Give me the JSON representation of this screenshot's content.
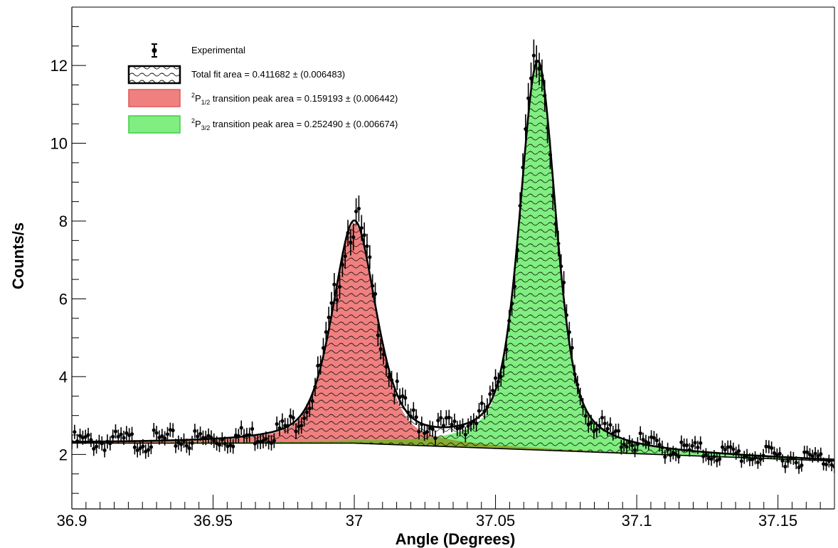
{
  "chart_data": {
    "type": "scatter",
    "xlabel": "Angle (Degrees)",
    "ylabel": "Counts/s",
    "xlim": [
      36.9,
      37.17
    ],
    "ylim": [
      0.6,
      13.5
    ],
    "x_ticks": [
      36.9,
      36.95,
      37.0,
      37.05,
      37.1,
      37.15
    ],
    "x_tick_labels": [
      "36.9",
      "36.95",
      "37",
      "37.05",
      "37.1",
      "37.15"
    ],
    "y_ticks": [
      2,
      4,
      6,
      8,
      10,
      12
    ],
    "y_tick_labels": [
      "2",
      "4",
      "6",
      "8",
      "10",
      "12"
    ],
    "grid": false,
    "legend_position": "top-left",
    "legend": {
      "experimental": "Experimental",
      "total_fit": "Total fit area = 0.411682 ± (0.006483)",
      "p12_pre": "P",
      "p12_sup": "2",
      "p12_sub": "1/2",
      "p12_post": " transition peak area = 0.159193 ± (0.006442)",
      "p32_pre": "P",
      "p32_sup": "2",
      "p32_sub": "3/2",
      "p32_post": " transition peak area = 0.252490 ± (0.006674)"
    },
    "colors": {
      "p12_fill": "#f08080",
      "p12_edge": "#e05555",
      "p32_fill": "#80ee80",
      "p32_edge": "#44cc44",
      "overlap": "#88aa33",
      "fit": "#000000",
      "points": "#000000"
    },
    "background": {
      "a": 2.29,
      "b": 2.29,
      "c": 1.83,
      "x_start": 36.9,
      "x_end": 37.17,
      "x_mid": 37.0
    },
    "peak_p12": {
      "center": 37.0,
      "amplitude": 5.65,
      "sigma": 0.0078,
      "gamma": 0.009
    },
    "peak_p32": {
      "center": 37.065,
      "amplitude": 9.95,
      "sigma": 0.0062,
      "gamma": 0.0082
    },
    "experimental_x_range": [
      36.9,
      37.17
    ],
    "experimental_points": 280,
    "experimental_error": 0.12
  }
}
